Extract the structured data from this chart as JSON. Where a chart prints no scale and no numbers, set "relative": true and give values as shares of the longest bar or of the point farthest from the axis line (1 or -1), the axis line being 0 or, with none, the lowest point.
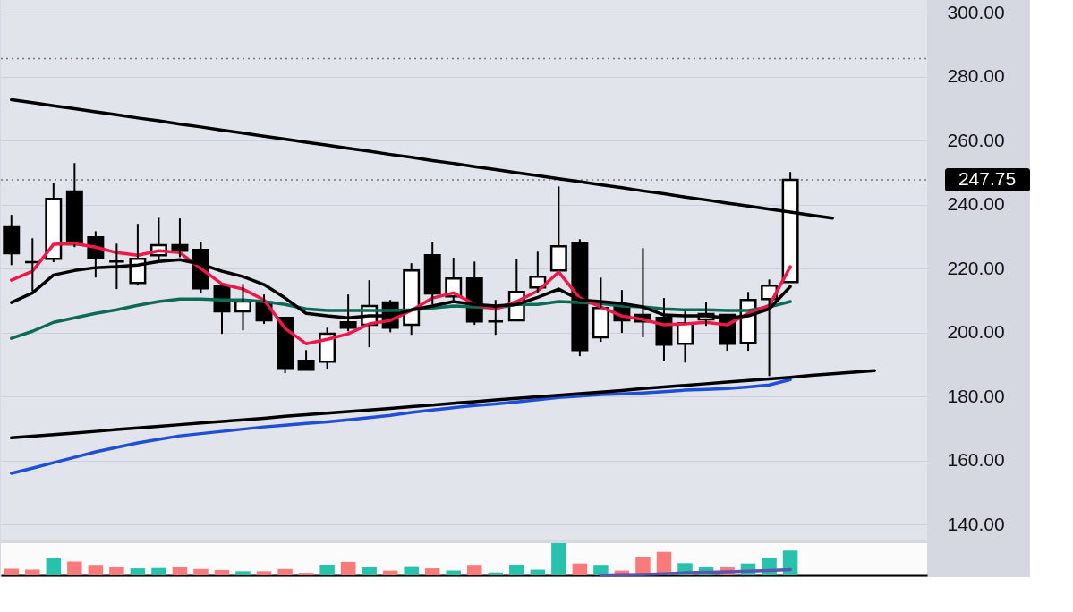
{
  "chart_data": [
    {
      "type": "candlestick",
      "categories": [
        null,
        null,
        null,
        null,
        null,
        null,
        null,
        null,
        null,
        null,
        null,
        null,
        null,
        null,
        null,
        null,
        null,
        null,
        null,
        null,
        null,
        null,
        null,
        null,
        null,
        null,
        null,
        null,
        null,
        null,
        null,
        null,
        null,
        null,
        null,
        null,
        null,
        null,
        null,
        null,
        null,
        null,
        null,
        null
      ],
      "ohlc": [
        [
          232.9,
          236.8,
          221.1,
          224.8
        ],
        [
          222.0,
          229.5,
          213.0,
          222.0
        ],
        [
          223.1,
          246.9,
          222.0,
          241.8
        ],
        [
          244.1,
          253.0,
          226.7,
          227.6
        ],
        [
          229.8,
          231.7,
          217.2,
          223.4
        ],
        [
          222.2,
          227.8,
          213.6,
          222.2
        ],
        [
          215.5,
          234.0,
          214.7,
          223.1
        ],
        [
          224.2,
          235.9,
          222.5,
          227.3
        ],
        [
          227.3,
          235.7,
          223.6,
          225.6
        ],
        [
          225.9,
          228.4,
          212.2,
          213.8
        ],
        [
          214.4,
          214.4,
          199.6,
          206.6
        ],
        [
          206.6,
          215.2,
          200.7,
          209.7
        ],
        [
          209.4,
          211.9,
          202.7,
          203.8
        ],
        [
          204.6,
          204.6,
          187.3,
          188.9
        ],
        [
          191.2,
          194.5,
          188.4,
          188.4
        ],
        [
          190.9,
          201.5,
          188.7,
          199.6
        ],
        [
          203.2,
          211.9,
          200.4,
          201.5
        ],
        [
          202.4,
          216.4,
          195.4,
          208.3
        ],
        [
          209.4,
          210.2,
          200.1,
          201.5
        ],
        [
          202.4,
          221.7,
          199.3,
          219.4
        ],
        [
          224.2,
          228.4,
          208.8,
          212.2
        ],
        [
          211.3,
          223.4,
          209.7,
          216.9
        ],
        [
          216.9,
          222.2,
          202.4,
          203.5
        ],
        [
          203.5,
          210.2,
          199.3,
          203.5
        ],
        [
          203.8,
          223.1,
          203.8,
          212.7
        ],
        [
          214.1,
          225.3,
          212.4,
          217.5
        ],
        [
          219.4,
          245.7,
          219.4,
          227.0
        ],
        [
          228.1,
          229.2,
          192.6,
          194.5
        ],
        [
          198.5,
          217.2,
          197.1,
          207.7
        ],
        [
          208.8,
          213.3,
          199.9,
          203.8
        ],
        [
          205.5,
          226.4,
          198.5,
          203.5
        ],
        [
          204.6,
          210.8,
          191.2,
          196.2
        ],
        [
          196.5,
          206.6,
          190.6,
          202.9
        ],
        [
          204.1,
          209.7,
          202.1,
          205.8
        ],
        [
          205.5,
          205.5,
          194.3,
          196.5
        ],
        [
          196.8,
          212.7,
          194.3,
          210.2
        ],
        [
          210.5,
          216.6,
          186.4,
          214.7
        ],
        [
          215.8,
          250.2,
          215.8,
          247.75
        ],
        null,
        null,
        null,
        null,
        null,
        null
      ],
      "colors": [
        "#000000",
        "#000000",
        "#ffffff",
        "#000000",
        "#000000",
        "#000000",
        "#ffffff",
        "#ffffff",
        "#000000",
        "#000000",
        "#000000",
        "#ffffff",
        "#000000",
        "#000000",
        "#000000",
        "#ffffff",
        "#000000",
        "#ffffff",
        "#000000",
        "#ffffff",
        "#000000",
        "#ffffff",
        "#000000",
        "#000000",
        "#ffffff",
        "#ffffff",
        "#ffffff",
        "#000000",
        "#ffffff",
        "#000000",
        "#000000",
        "#000000",
        "#ffffff",
        "#ffffff",
        "#000000",
        "#ffffff",
        "#ffffff",
        "#ffffff",
        null,
        null,
        null,
        null,
        null,
        null
      ],
      "series": [
        {
          "type": "line",
          "color": "#1f4fd8",
          "values": [
            156.0,
            157.6,
            159.3,
            161.0,
            162.7,
            164.1,
            165.5,
            166.6,
            167.7,
            168.4,
            169.1,
            169.8,
            170.5,
            171.0,
            171.6,
            172.1,
            172.7,
            173.4,
            174.1,
            175.0,
            175.8,
            176.5,
            177.2,
            177.7,
            178.3,
            179.0,
            179.7,
            180.1,
            180.6,
            180.8,
            181.1,
            181.5,
            182.0,
            182.2,
            182.5,
            183.0,
            183.6,
            185.3,
            null,
            null,
            null,
            null,
            null,
            null
          ]
        },
        {
          "type": "line",
          "color": "#0b6b58",
          "values": [
            198.2,
            200.4,
            203.2,
            204.6,
            206.0,
            207.1,
            208.5,
            209.7,
            210.5,
            210.5,
            210.2,
            210.2,
            209.7,
            208.8,
            207.4,
            206.9,
            206.9,
            206.9,
            206.9,
            207.1,
            207.7,
            208.3,
            208.0,
            207.7,
            208.8,
            208.8,
            209.7,
            209.4,
            209.1,
            208.3,
            208.0,
            207.4,
            207.1,
            207.1,
            206.9,
            206.9,
            208.0,
            209.7,
            null,
            null,
            null,
            null,
            null,
            null
          ]
        },
        {
          "type": "line",
          "color": "#f2164a",
          "values": [
            216.4,
            219.2,
            227.6,
            227.8,
            226.7,
            225.0,
            224.2,
            225.6,
            225.0,
            220.0,
            215.2,
            213.6,
            210.2,
            201.3,
            196.5,
            197.9,
            199.6,
            202.7,
            203.8,
            206.9,
            210.8,
            212.4,
            208.8,
            207.4,
            209.7,
            213.0,
            218.9,
            210.8,
            208.0,
            205.2,
            204.1,
            202.4,
            202.7,
            203.2,
            202.4,
            206.0,
            208.5,
            220.6,
            null,
            null,
            null,
            null,
            null,
            null
          ]
        },
        {
          "type": "line",
          "color": "#000000",
          "values": [
            209.4,
            212.4,
            218.0,
            219.4,
            220.3,
            220.6,
            221.1,
            222.2,
            222.8,
            221.4,
            219.2,
            217.5,
            215.0,
            210.8,
            206.0,
            205.2,
            204.6,
            205.2,
            205.2,
            207.1,
            208.3,
            209.7,
            208.8,
            208.3,
            208.8,
            211.0,
            213.6,
            210.2,
            209.7,
            209.1,
            208.0,
            205.5,
            205.2,
            205.2,
            204.6,
            205.2,
            207.4,
            214.4,
            null,
            null,
            null,
            null,
            null,
            null
          ]
        },
        {
          "type": "line",
          "color": "#000000",
          "values": [
            272.8,
            271.9,
            270.9,
            270.0,
            269.0,
            268.1,
            267.1,
            266.2,
            265.2,
            264.3,
            263.3,
            262.4,
            261.4,
            260.5,
            259.5,
            258.6,
            257.6,
            256.7,
            255.7,
            254.8,
            253.8,
            252.9,
            251.9,
            251.0,
            250.0,
            249.1,
            248.1,
            247.2,
            246.2,
            245.3,
            244.3,
            243.4,
            242.4,
            241.5,
            240.5,
            239.6,
            238.6,
            237.7,
            236.7,
            235.8,
            null,
            null,
            null,
            null
          ]
        },
        {
          "type": "line",
          "color": "#000000",
          "values": [
            167.1,
            167.6,
            168.1,
            168.6,
            169.1,
            169.7,
            170.2,
            170.7,
            171.2,
            171.7,
            172.2,
            172.7,
            173.2,
            173.8,
            174.3,
            174.8,
            175.3,
            175.8,
            176.3,
            176.8,
            177.3,
            177.9,
            178.4,
            178.9,
            179.4,
            179.9,
            180.4,
            180.9,
            181.4,
            181.9,
            182.5,
            183.0,
            183.5,
            184.0,
            184.5,
            185.0,
            185.5,
            186.0,
            186.6,
            187.1,
            187.6,
            188.1,
            null,
            null
          ]
        }
      ],
      "ylim": [
        135,
        304
      ],
      "yticks": [
        {
          "value": 140,
          "label": "140.00"
        },
        {
          "value": 160,
          "label": "160.00"
        },
        {
          "value": 180,
          "label": "180.00"
        },
        {
          "value": 200,
          "label": "200.00"
        },
        {
          "value": 220,
          "label": "220.00"
        },
        {
          "value": 240,
          "label": "240.00"
        },
        {
          "value": 260,
          "label": "260.00"
        },
        {
          "value": 280,
          "label": "280.00"
        },
        {
          "value": 300,
          "label": "300.00"
        }
      ],
      "ref_lines": [
        {
          "axis": "y",
          "value": 285.7,
          "color": "#777777",
          "line_style": "dotted"
        },
        {
          "axis": "y",
          "value": 247.75,
          "label": "247.75",
          "color": "#777777",
          "line_style": "dotted"
        }
      ],
      "grid": "y",
      "tick_labels": "y"
    },
    {
      "type": "bar",
      "relative": true,
      "categories": [
        null,
        null,
        null,
        null,
        null,
        null,
        null,
        null,
        null,
        null,
        null,
        null,
        null,
        null,
        null,
        null,
        null,
        null,
        null,
        null,
        null,
        null,
        null,
        null,
        null,
        null,
        null,
        null,
        null,
        null,
        null,
        null,
        null,
        null,
        null,
        null,
        null,
        null,
        null,
        null,
        null,
        null,
        null,
        null
      ],
      "values": [
        0.21,
        0.18,
        0.53,
        0.43,
        0.3,
        0.25,
        0.22,
        0.23,
        0.25,
        0.2,
        0.17,
        0.13,
        0.13,
        0.2,
        0.08,
        0.32,
        0.42,
        0.25,
        0.15,
        0.26,
        0.22,
        0.15,
        0.3,
        0.09,
        0.32,
        0.18,
        1,
        0.37,
        0.3,
        0.15,
        0.57,
        0.73,
        0.38,
        0.25,
        0.25,
        0.37,
        0.53,
        0.77,
        null,
        null,
        null,
        null,
        null,
        null
      ],
      "colors": [
        "#fa7a7a",
        "#fa7a7a",
        "#26c2ac",
        "#fa7a7a",
        "#fa7a7a",
        "#fa7a7a",
        "#26c2ac",
        "#26c2ac",
        "#fa7a7a",
        "#fa7a7a",
        "#fa7a7a",
        "#26c2ac",
        "#fa7a7a",
        "#fa7a7a",
        "#fa7a7a",
        "#26c2ac",
        "#fa7a7a",
        "#26c2ac",
        "#fa7a7a",
        "#26c2ac",
        "#fa7a7a",
        "#26c2ac",
        "#fa7a7a",
        "#26c2ac",
        "#26c2ac",
        "#26c2ac",
        "#26c2ac",
        "#fa7a7a",
        "#26c2ac",
        "#fa7a7a",
        "#fa7a7a",
        "#fa7a7a",
        "#26c2ac",
        "#26c2ac",
        "#fa7a7a",
        "#26c2ac",
        "#26c2ac",
        "#26c2ac",
        null,
        null,
        null,
        null,
        null,
        null
      ],
      "series": [
        {
          "type": "line",
          "color": "#5a55b0",
          "values": [
            null,
            null,
            null,
            null,
            null,
            null,
            null,
            null,
            null,
            null,
            null,
            null,
            null,
            null,
            null,
            null,
            null,
            null,
            null,
            null,
            null,
            null,
            null,
            null,
            null,
            null,
            null,
            null,
            0.01,
            0.02,
            0.03,
            0.05,
            0.08,
            0.1,
            0.11,
            0.13,
            0.15,
            0.18,
            null,
            null,
            null,
            null,
            null,
            null
          ]
        }
      ],
      "tick_labels": false
    }
  ]
}
